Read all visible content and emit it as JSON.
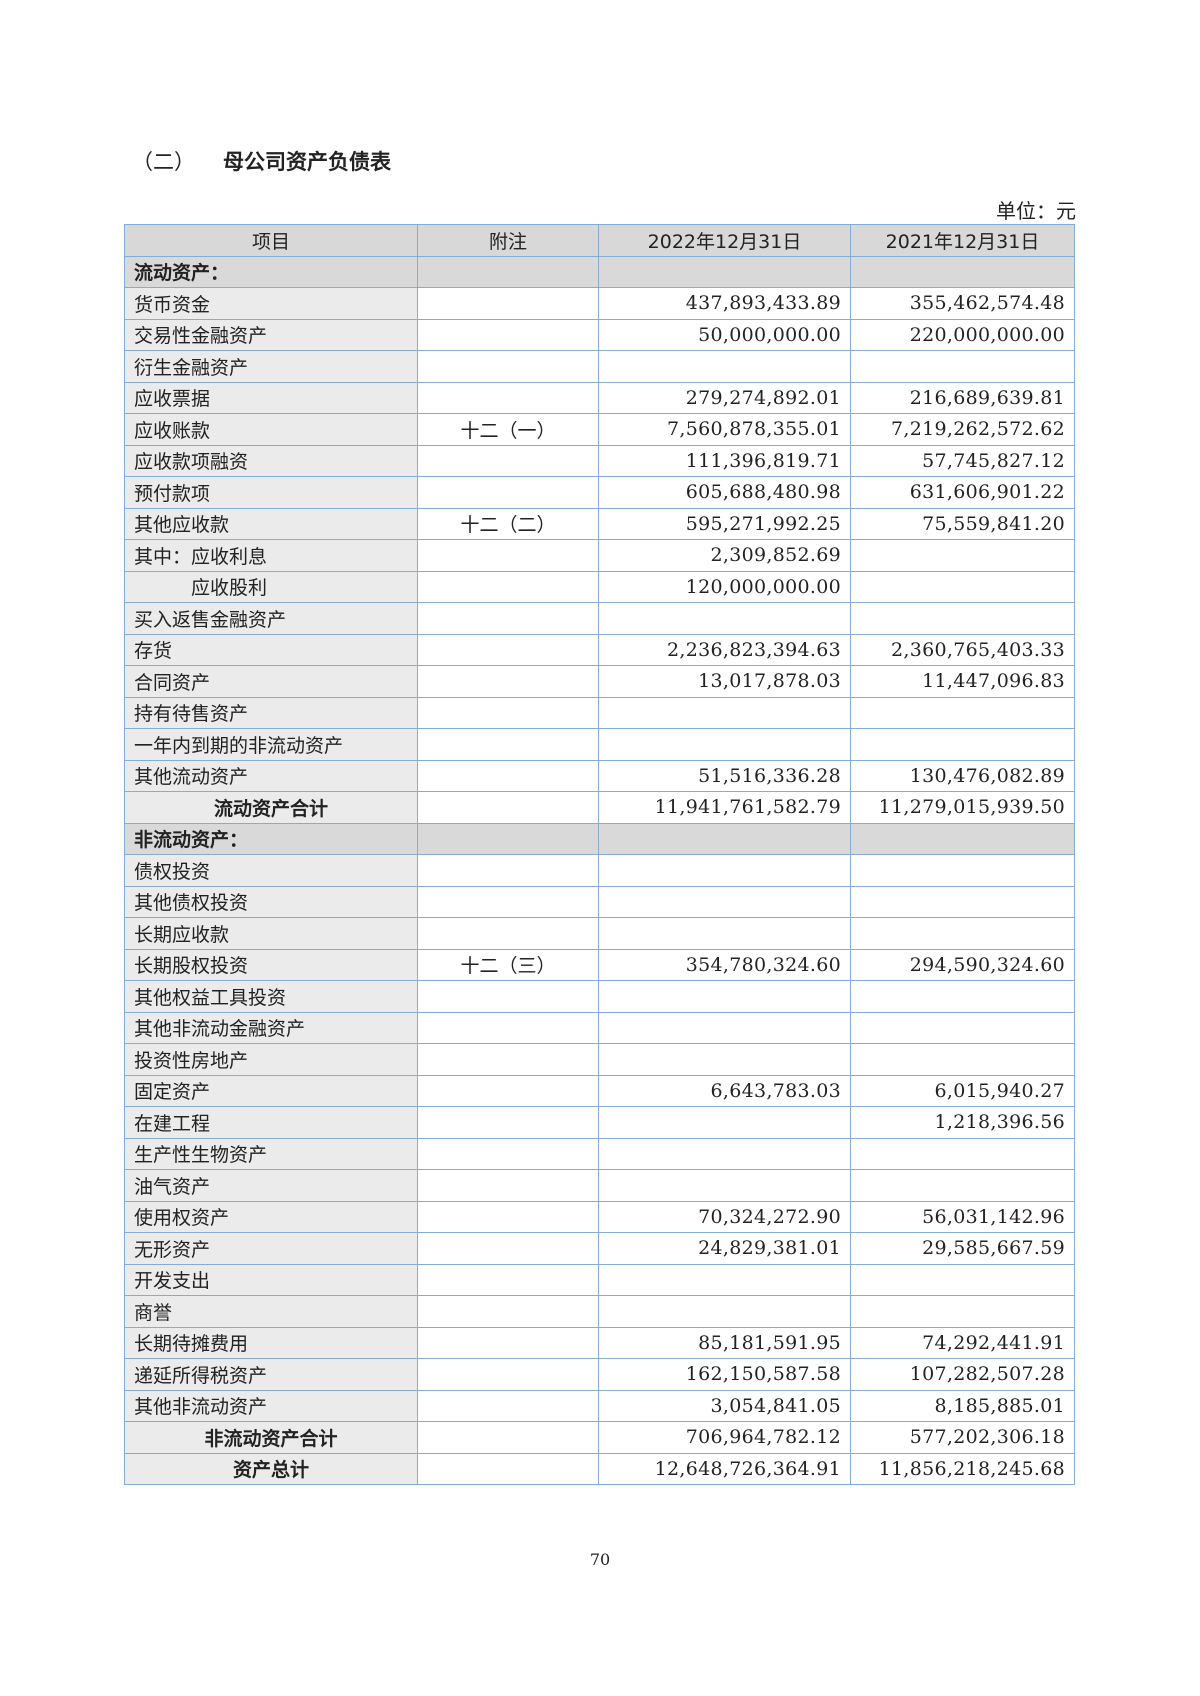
{
  "title": {
    "section": "（二）",
    "name": "母公司资产负债表"
  },
  "unit": "单位：元",
  "table": {
    "headers": [
      "项目",
      "附注",
      "2022年12月31日",
      "2021年12月31日"
    ],
    "rows": [
      {
        "type": "section",
        "item": "流动资产：",
        "note": "",
        "v2022": "",
        "v2021": ""
      },
      {
        "type": "row",
        "item": "货币资金",
        "note": "",
        "v2022": "437,893,433.89",
        "v2021": "355,462,574.48"
      },
      {
        "type": "row",
        "item": "交易性金融资产",
        "note": "",
        "v2022": "50,000,000.00",
        "v2021": "220,000,000.00"
      },
      {
        "type": "row",
        "item": "衍生金融资产",
        "note": "",
        "v2022": "",
        "v2021": ""
      },
      {
        "type": "row",
        "item": "应收票据",
        "note": "",
        "v2022": "279,274,892.01",
        "v2021": "216,689,639.81"
      },
      {
        "type": "row",
        "item": "应收账款",
        "note": "十二（一）",
        "v2022": "7,560,878,355.01",
        "v2021": "7,219,262,572.62"
      },
      {
        "type": "row",
        "item": "应收款项融资",
        "note": "",
        "v2022": "111,396,819.71",
        "v2021": "57,745,827.12"
      },
      {
        "type": "row",
        "item": "预付款项",
        "note": "",
        "v2022": "605,688,480.98",
        "v2021": "631,606,901.22"
      },
      {
        "type": "row",
        "item": "其他应收款",
        "note": "十二（二）",
        "v2022": "595,271,992.25",
        "v2021": "75,559,841.20"
      },
      {
        "type": "row",
        "item": "其中：应收利息",
        "note": "",
        "v2022": "2,309,852.69",
        "v2021": ""
      },
      {
        "type": "indent",
        "item": "应收股利",
        "note": "",
        "v2022": "120,000,000.00",
        "v2021": ""
      },
      {
        "type": "row",
        "item": "买入返售金融资产",
        "note": "",
        "v2022": "",
        "v2021": ""
      },
      {
        "type": "row",
        "item": "存货",
        "note": "",
        "v2022": "2,236,823,394.63",
        "v2021": "2,360,765,403.33"
      },
      {
        "type": "row",
        "item": "合同资产",
        "note": "",
        "v2022": "13,017,878.03",
        "v2021": "11,447,096.83"
      },
      {
        "type": "row",
        "item": "持有待售资产",
        "note": "",
        "v2022": "",
        "v2021": ""
      },
      {
        "type": "row",
        "item": "一年内到期的非流动资产",
        "note": "",
        "v2022": "",
        "v2021": ""
      },
      {
        "type": "row",
        "item": "其他流动资产",
        "note": "",
        "v2022": "51,516,336.28",
        "v2021": "130,476,082.89"
      },
      {
        "type": "total",
        "item": "流动资产合计",
        "note": "",
        "v2022": "11,941,761,582.79",
        "v2021": "11,279,015,939.50"
      },
      {
        "type": "section",
        "item": "非流动资产：",
        "note": "",
        "v2022": "",
        "v2021": ""
      },
      {
        "type": "row",
        "item": "债权投资",
        "note": "",
        "v2022": "",
        "v2021": ""
      },
      {
        "type": "row",
        "item": "其他债权投资",
        "note": "",
        "v2022": "",
        "v2021": ""
      },
      {
        "type": "row",
        "item": "长期应收款",
        "note": "",
        "v2022": "",
        "v2021": ""
      },
      {
        "type": "row",
        "item": "长期股权投资",
        "note": "十二（三）",
        "v2022": "354,780,324.60",
        "v2021": "294,590,324.60"
      },
      {
        "type": "row",
        "item": "其他权益工具投资",
        "note": "",
        "v2022": "",
        "v2021": ""
      },
      {
        "type": "row",
        "item": "其他非流动金融资产",
        "note": "",
        "v2022": "",
        "v2021": ""
      },
      {
        "type": "row",
        "item": "投资性房地产",
        "note": "",
        "v2022": "",
        "v2021": ""
      },
      {
        "type": "row",
        "item": "固定资产",
        "note": "",
        "v2022": "6,643,783.03",
        "v2021": "6,015,940.27"
      },
      {
        "type": "row",
        "item": "在建工程",
        "note": "",
        "v2022": "",
        "v2021": "1,218,396.56"
      },
      {
        "type": "row",
        "item": "生产性生物资产",
        "note": "",
        "v2022": "",
        "v2021": ""
      },
      {
        "type": "row",
        "item": "油气资产",
        "note": "",
        "v2022": "",
        "v2021": ""
      },
      {
        "type": "row",
        "item": "使用权资产",
        "note": "",
        "v2022": "70,324,272.90",
        "v2021": "56,031,142.96"
      },
      {
        "type": "row",
        "item": "无形资产",
        "note": "",
        "v2022": "24,829,381.01",
        "v2021": "29,585,667.59"
      },
      {
        "type": "row",
        "item": "开发支出",
        "note": "",
        "v2022": "",
        "v2021": ""
      },
      {
        "type": "row",
        "item": "商誉",
        "note": "",
        "v2022": "",
        "v2021": ""
      },
      {
        "type": "row",
        "item": "长期待摊费用",
        "note": "",
        "v2022": "85,181,591.95",
        "v2021": "74,292,441.91"
      },
      {
        "type": "row",
        "item": "递延所得税资产",
        "note": "",
        "v2022": "162,150,587.58",
        "v2021": "107,282,507.28"
      },
      {
        "type": "row",
        "item": "其他非流动资产",
        "note": "",
        "v2022": "3,054,841.05",
        "v2021": "8,185,885.01"
      },
      {
        "type": "total",
        "item": "非流动资产合计",
        "note": "",
        "v2022": "706,964,782.12",
        "v2021": "577,202,306.18"
      },
      {
        "type": "total",
        "item": "资产总计",
        "note": "",
        "v2022": "12,648,726,364.91",
        "v2021": "11,856,218,245.68"
      }
    ]
  },
  "page_number": "70",
  "colors": {
    "border": "#84acd8",
    "header_bg": "#d8d8d8",
    "label_bg": "#ebebeb"
  }
}
